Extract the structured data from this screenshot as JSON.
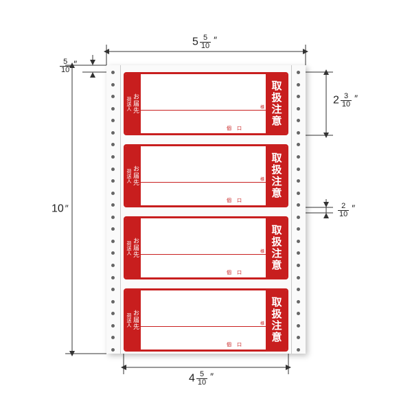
{
  "colors": {
    "label_border": "#c81e1e",
    "label_fill_strip": "#c81e1e",
    "dim_line": "#333333",
    "sheet_bg": "#fafafa"
  },
  "dimensions": {
    "sheet_width": {
      "whole": "5",
      "num": "5",
      "den": "10"
    },
    "sheet_height": {
      "whole": "10",
      "num": "",
      "den": ""
    },
    "label_width": {
      "whole": "4",
      "num": "5",
      "den": "10"
    },
    "label_height": {
      "whole": "2",
      "num": "3",
      "den": "10"
    },
    "label_gap": {
      "whole": "",
      "num": "2",
      "den": "10"
    },
    "margin_top": {
      "whole": "",
      "num": "5",
      "den": "10"
    }
  },
  "label_texts": {
    "left_top": "お届先",
    "left_bottom": "荷送人",
    "right": "取扱注意",
    "small1": "様",
    "small2": "個",
    "small3": "口"
  },
  "layout": {
    "label_count": 4,
    "label_top_positions": [
      10,
      115,
      220,
      325
    ],
    "perf_hole_count": 24
  }
}
